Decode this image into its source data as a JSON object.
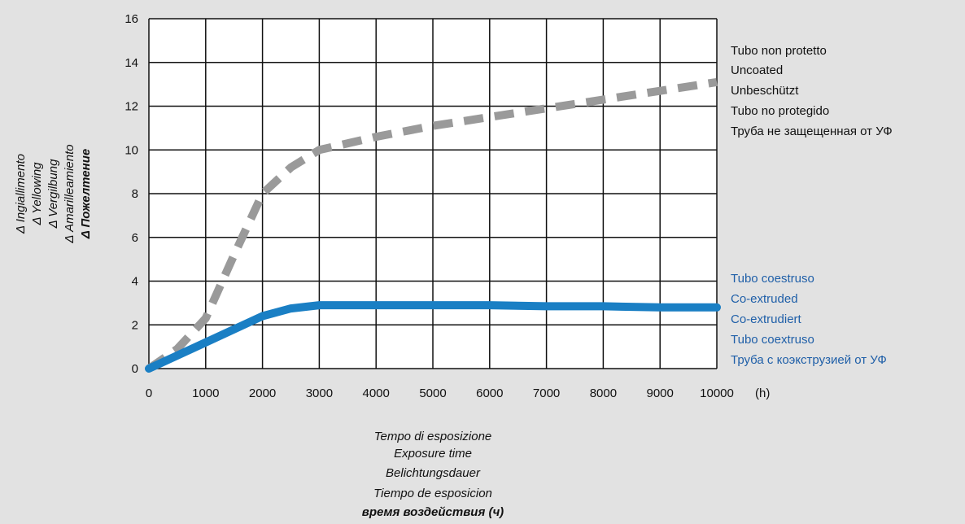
{
  "chart_data": {
    "type": "line",
    "x_unit": "(h)",
    "xlim": [
      0,
      10000
    ],
    "ylim": [
      0,
      16
    ],
    "x_ticks": [
      "0",
      "1000",
      "2000",
      "3000",
      "4000",
      "5000",
      "6000",
      "7000",
      "8000",
      "9000",
      "10000"
    ],
    "y_ticks": [
      "0",
      "2",
      "4",
      "6",
      "8",
      "10",
      "12",
      "14",
      "16"
    ],
    "grid": true,
    "ylabel_lines": [
      "Δ Ingiallimento",
      "Δ Yellowing",
      "Δ Vergilbung",
      "Δ Amarilleamiento",
      "Δ Пожелтение"
    ],
    "xlabel_lines": [
      "Tempo di esposizione",
      "Exposure time",
      "Belichtungsdauer",
      "Tiempo de esposicion",
      "время воздействия (ч)"
    ],
    "series": [
      {
        "labels": [
          "Tubo non protetto",
          "Uncoated",
          "Unbeschützt",
          "Tubo no protegido",
          "Труба не защещенная от УФ"
        ],
        "color": "#9a9a9a",
        "style": "dashed",
        "x": [
          0,
          500,
          1000,
          1500,
          2000,
          2500,
          3000,
          4000,
          5000,
          6000,
          7000,
          8000,
          9000,
          10000
        ],
        "y": [
          0,
          0.9,
          2.3,
          5.2,
          8.0,
          9.2,
          10.0,
          10.6,
          11.1,
          11.5,
          11.9,
          12.3,
          12.7,
          13.1
        ]
      },
      {
        "labels": [
          "Tubo coestruso",
          "Co-extruded",
          "Co-extrudiert",
          "Tubo coextruso",
          "Труба с коэкструзией от УФ"
        ],
        "color": "#1a7fc4",
        "style": "solid",
        "x": [
          0,
          1000,
          2000,
          2500,
          3000,
          4000,
          5000,
          6000,
          7000,
          8000,
          9000,
          10000
        ],
        "y": [
          0,
          1.2,
          2.4,
          2.75,
          2.9,
          2.9,
          2.9,
          2.9,
          2.85,
          2.85,
          2.8,
          2.8
        ]
      }
    ]
  }
}
